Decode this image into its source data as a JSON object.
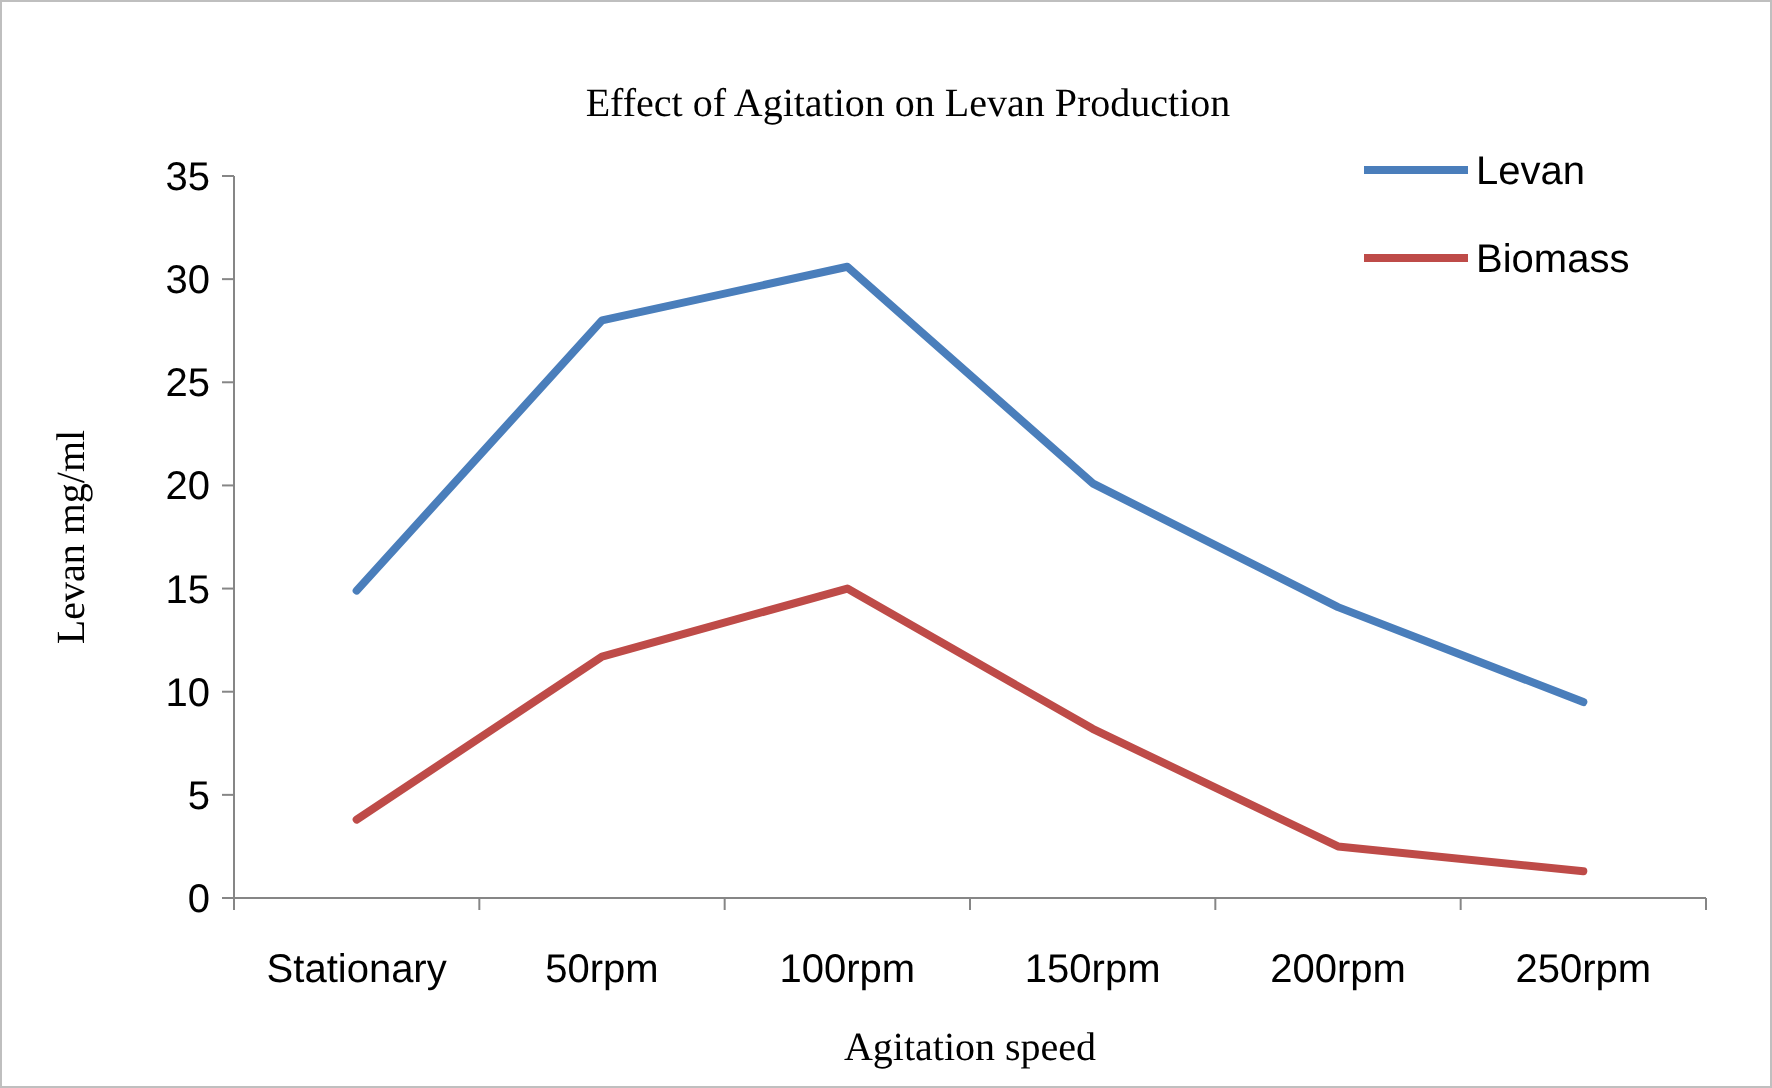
{
  "chart_data": {
    "type": "line",
    "title": "Effect of Agitation on Levan Production",
    "xlabel": "Agitation speed",
    "ylabel": "Levan mg/ml",
    "categories": [
      "Stationary",
      "50rpm",
      "100rpm",
      "150rpm",
      "200rpm",
      "250rpm"
    ],
    "series": [
      {
        "name": "Levan",
        "color": "#4a7ebb",
        "values": [
          14.9,
          28.0,
          30.6,
          20.1,
          14.1,
          9.5
        ]
      },
      {
        "name": "Biomass",
        "color": "#be4b48",
        "values": [
          3.8,
          11.7,
          15.0,
          8.2,
          2.5,
          1.3
        ]
      }
    ],
    "ylim": [
      0,
      35
    ],
    "yticks": [
      0,
      5,
      10,
      15,
      20,
      25,
      30,
      35
    ],
    "grid": false,
    "legend": "top right",
    "marker": "none",
    "line_style": "solid"
  }
}
